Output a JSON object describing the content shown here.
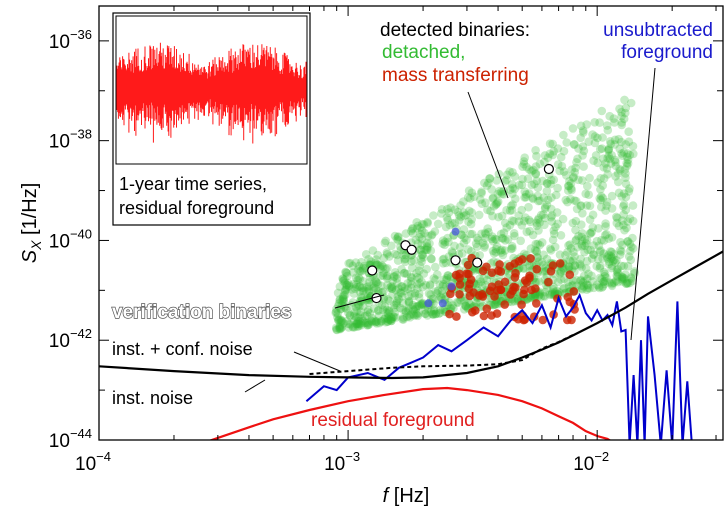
{
  "chart_data": {
    "type": "scatter",
    "xlabel": "f [Hz]",
    "ylabel": "S_X [1/Hz]",
    "x_scale": "log",
    "y_scale": "log",
    "xlim": [
      0.0001,
      0.032
    ],
    "ylim": [
      1e-44,
      5e-36
    ],
    "x_ticks": [
      {
        "value": 0.0001,
        "mant": "10",
        "exp": "−4"
      },
      {
        "value": 0.001,
        "mant": "10",
        "exp": "−3"
      },
      {
        "value": 0.01,
        "mant": "10",
        "exp": "−2"
      }
    ],
    "y_ticks": [
      {
        "value": 1e-44,
        "mant": "10",
        "exp": "−44"
      },
      {
        "value": 1e-42,
        "mant": "10",
        "exp": "−42"
      },
      {
        "value": 1e-40,
        "mant": "10",
        "exp": "−40"
      },
      {
        "value": 1e-38,
        "mant": "10",
        "exp": "−38"
      },
      {
        "value": 1e-36,
        "mant": "10",
        "exp": "−36"
      }
    ],
    "annotations": {
      "detected_title": "detected binaries:",
      "detached": "detached,",
      "mass_transferring": "mass transferring",
      "unsubtracted_1": "unsubtracted",
      "unsubtracted_2": "foreground",
      "verification": "verification binaries",
      "inst_conf": "inst. + conf. noise",
      "inst": "inst. noise",
      "residual": "residual foreground",
      "inset_1": "1-year time series,",
      "inset_2": "residual foreground"
    },
    "colors": {
      "detached": "#33bb33",
      "mass_transferring": "#cc2200",
      "unsubtracted": "#0000cc",
      "residual": "#ee1111",
      "noise": "#000000",
      "inset": "#ff1a1a",
      "unsubtracted_label": "#1a1acc",
      "residual_label": "#e02020"
    },
    "inst_noise": {
      "f": [
        0.0001,
        0.0002,
        0.0004,
        0.0007,
        0.001,
        0.0015,
        0.002,
        0.003,
        0.004,
        0.005,
        0.006,
        0.007,
        0.008,
        0.01,
        0.013,
        0.016,
        0.02,
        0.025,
        0.032
      ],
      "S": [
        3e-43,
        2.4e-43,
        2e-43,
        1.85e-43,
        1.8e-43,
        1.75e-43,
        1.8e-43,
        2.2e-43,
        3e-43,
        4.5e-43,
        6.5e-43,
        9e-43,
        1.25e-42,
        2.2e-42,
        4.5e-42,
        8.5e-42,
        1.6e-41,
        3e-41,
        6e-41
      ]
    },
    "inst_conf_noise": {
      "f": [
        0.0007,
        0.001,
        0.0015,
        0.002,
        0.003,
        0.004,
        0.005,
        0.006,
        0.007,
        0.008
      ],
      "S": [
        2.1e-43,
        2.4e-43,
        2.8e-43,
        3e-43,
        3.1e-43,
        3.3e-43,
        4e-43,
        6.8e-43,
        9.2e-43,
        1.27e-42
      ]
    },
    "residual_foreground": {
      "f": [
        0.00025,
        0.0003,
        0.0004,
        0.0005,
        0.0007,
        0.001,
        0.0014,
        0.002,
        0.0025,
        0.003,
        0.004,
        0.005,
        0.006,
        0.007,
        0.008,
        0.009,
        0.01,
        0.011,
        0.012
      ],
      "S": [
        8e-45,
        1.1e-44,
        1.8e-44,
        2.6e-44,
        4e-44,
        6e-44,
        8e-44,
        1.05e-43,
        1.1e-43,
        1e-43,
        8e-44,
        6e-44,
        4.3e-44,
        3e-44,
        2.2e-44,
        1.5e-44,
        1.2e-44,
        1.05e-44,
        8e-45
      ]
    },
    "unsubtracted_foreground": {
      "f": [
        0.00068,
        0.0008,
        0.0009,
        0.001,
        0.0012,
        0.0014,
        0.0016,
        0.0018,
        0.002,
        0.0023,
        0.0026,
        0.003,
        0.0035,
        0.004,
        0.0045,
        0.005,
        0.0055,
        0.006,
        0.0065,
        0.007,
        0.0075,
        0.008,
        0.0085,
        0.009,
        0.0095,
        0.01,
        0.0105,
        0.011,
        0.0115,
        0.012,
        0.0125,
        0.013,
        0.0135,
        0.014,
        0.0145,
        0.015,
        0.0155,
        0.016,
        0.017,
        0.018,
        0.019,
        0.02,
        0.021,
        0.022,
        0.023,
        0.024,
        0.026
      ],
      "S": [
        6e-44,
        1.2e-43,
        1e-43,
        1.8e-43,
        2.2e-43,
        1.6e-43,
        2.8e-43,
        3.6e-43,
        4.5e-43,
        8e-43,
        6e-43,
        1e-42,
        1.8e-42,
        1.2e-42,
        2.5e-42,
        4e-42,
        2.2e-42,
        5e-42,
        1.8e-42,
        7e-42,
        3e-42,
        4.5e-42,
        8e-42,
        3.5e-42,
        2.5e-42,
        4e-42,
        2.5e-42,
        3.2e-42,
        2e-42,
        6e-42,
        1.5e-42,
        1.6e-42,
        8e-45,
        2e-43,
        8e-45,
        1e-42,
        8e-45,
        3e-42,
        2e-43,
        8e-45,
        2.5e-43,
        8e-45,
        6e-42,
        8e-45,
        1.5e-43,
        8e-45,
        8e-45
      ]
    },
    "verification_binaries": [
      {
        "f": 0.00125,
        "S": 2.5e-41
      },
      {
        "f": 0.0013,
        "S": 7e-42
      },
      {
        "f": 0.0017,
        "S": 8e-41
      },
      {
        "f": 0.0018,
        "S": 6.5e-41
      },
      {
        "f": 0.0027,
        "S": 4e-41
      },
      {
        "f": 0.0033,
        "S": 3.6e-41
      },
      {
        "f": 0.0064,
        "S": 2.7e-39
      }
    ],
    "inset": {
      "label_line1": "1-year time series,",
      "label_line2": "residual foreground"
    }
  }
}
